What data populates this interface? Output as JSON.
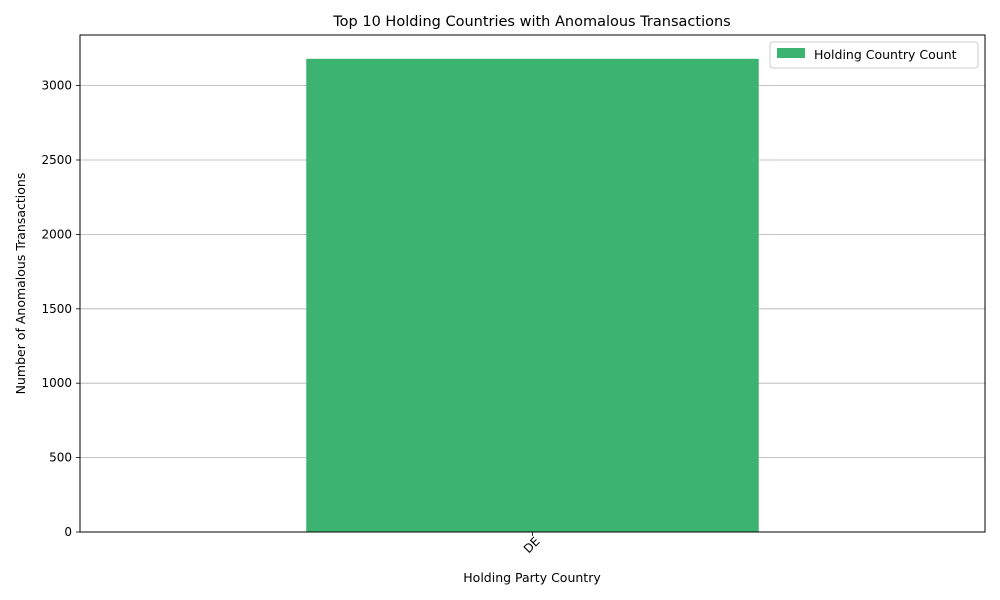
{
  "chart_data": {
    "type": "bar",
    "title": "Top 10 Holding Countries with Anomalous Transactions",
    "xlabel": "Holding Party Country",
    "ylabel": "Number of Anomalous Transactions",
    "categories": [
      "DE"
    ],
    "series": [
      {
        "name": "Holding Country Count",
        "values": [
          3180
        ],
        "color": "#3cb371"
      }
    ],
    "ylim": [
      0,
      3340
    ],
    "yticks": [
      0,
      500,
      1000,
      1500,
      2000,
      2500,
      3000
    ],
    "grid": "y",
    "legend": "top-right",
    "xtick_rotation": 45
  }
}
